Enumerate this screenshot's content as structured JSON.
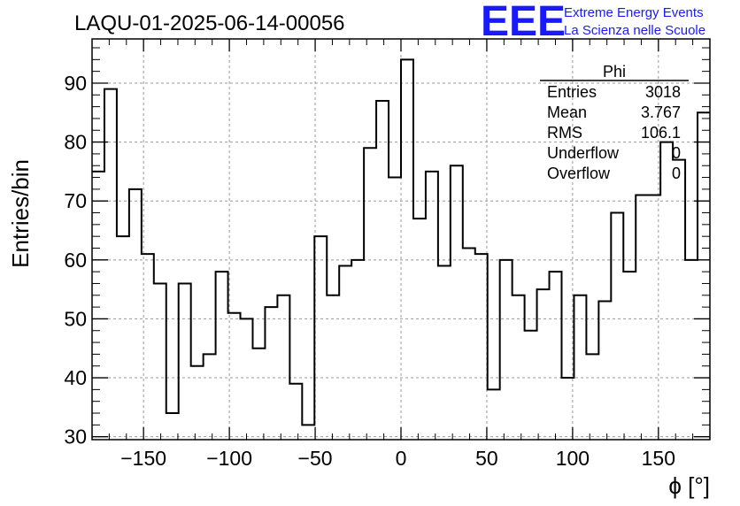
{
  "chart_data": {
    "type": "histogram",
    "title": "LAQU-01-2025-06-14-00056",
    "xlabel": "ϕ [°]",
    "ylabel": "Entries/bin",
    "xlim": [
      -180,
      180
    ],
    "ylim": [
      29.5,
      97.5
    ],
    "grid": true,
    "bin_width": 7.2,
    "bin_edges_start": -180,
    "values": [
      75,
      89,
      64,
      72,
      61,
      56,
      34,
      56,
      42,
      44,
      58,
      51,
      50,
      45,
      52,
      54,
      39,
      32,
      64,
      54,
      59,
      60,
      79,
      87,
      74,
      94,
      67,
      75,
      59,
      76,
      62,
      61,
      38,
      60,
      54,
      48,
      55,
      58,
      40,
      54,
      44,
      53,
      68,
      58,
      71,
      71,
      80,
      77,
      60,
      85
    ],
    "xticks": [
      -150,
      -100,
      -50,
      0,
      50,
      100,
      150
    ],
    "xtick_labels": [
      "−150",
      "−100",
      "−50",
      "0",
      "50",
      "100",
      "150"
    ],
    "yticks": [
      30,
      40,
      50,
      60,
      70,
      80,
      90
    ],
    "ytick_labels": [
      "30",
      "40",
      "50",
      "60",
      "70",
      "80",
      "90"
    ],
    "stats_box": {
      "name": "Phi",
      "rows": [
        {
          "label": "Entries",
          "value": "3018"
        },
        {
          "label": "Mean",
          "value": "3.767"
        },
        {
          "label": "RMS",
          "value": "106.1"
        },
        {
          "label": "Underflow",
          "value": "0"
        },
        {
          "label": "Overflow",
          "value": "0"
        }
      ]
    }
  },
  "logo": {
    "text": "EEE",
    "line1": "Extreme Energy Events",
    "line2": "La Scienza nelle Scuole",
    "color": "#1a1aff"
  }
}
